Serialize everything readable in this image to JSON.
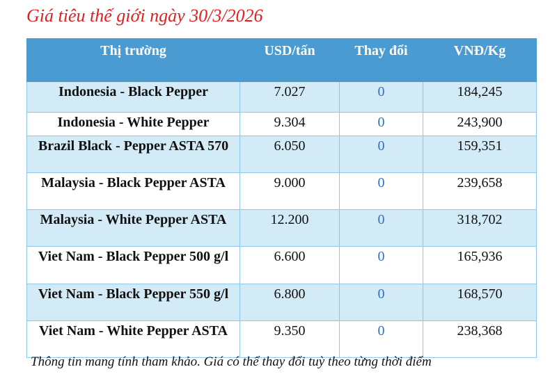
{
  "title": "Giá tiêu thế giới ngày 30/3/2026",
  "headers": [
    "Thị trường",
    "USD/tấn",
    "Thay đổi",
    "VNĐ/Kg"
  ],
  "rows": [
    {
      "market": "Indonesia - Black Pepper",
      "usd": "7.027",
      "change": "0",
      "vnd": "184,245"
    },
    {
      "market": "Indonesia - White Pepper",
      "usd": "9.304",
      "change": "0",
      "vnd": "243,900"
    },
    {
      "market": "Brazil Black - Pepper ASTA 570",
      "usd": "6.050",
      "change": "0",
      "vnd": "159,351"
    },
    {
      "market": "Malaysia - Black Pepper ASTA",
      "usd": "9.000",
      "change": "0",
      "vnd": "239,658"
    },
    {
      "market": "Malaysia - White Pepper ASTA",
      "usd": "12.200",
      "change": "0",
      "vnd": "318,702"
    },
    {
      "market": "Viet Nam - Black Pepper 500 g/l",
      "usd": "6.600",
      "change": "0",
      "vnd": "165,936"
    },
    {
      "market": "Viet Nam - Black Pepper 550 g/l",
      "usd": "6.800",
      "change": "0",
      "vnd": "168,570"
    },
    {
      "market": "Viet Nam - White Pepper ASTA",
      "usd": "9.350",
      "change": "0",
      "vnd": "238,368"
    }
  ],
  "note": "Thông tin mang tính tham khảo. Giá có thể thay đổi tuỳ theo từng thời điểm",
  "colors": {
    "title": "#e02020",
    "header_bg": "#4a9bd2",
    "alt_row": "#d3eaf7",
    "change": "#2f6fc4"
  }
}
